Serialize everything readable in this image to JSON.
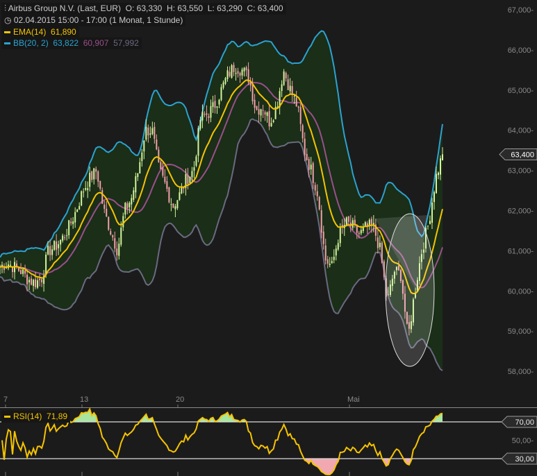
{
  "header": {
    "title": "Airbus Group N.V. (Last, EUR)",
    "open": "O: 63,330",
    "high": "H: 63,550",
    "low": "L: 63,290",
    "close": "C: 63,400",
    "period": "02.04.2015 15:00 - 17:00 (1 Monat, 1 Stunde)",
    "ema_label": "EMA(14)",
    "ema_value": "61,890",
    "bb_label": "BB(20, 2)",
    "bb_upper": "63,822",
    "bb_mid": "60,907",
    "bb_lower": "57,992",
    "rsi_label": "RSI(14)",
    "rsi_value": "71,89"
  },
  "colors": {
    "background": "#1c1b1b",
    "ema": "#f5c400",
    "bb_upper": "#2aa3d0",
    "bb_mid": "#9a4f8a",
    "bb_lower": "#6a6a80",
    "band_fill": "#1a2e18",
    "up": "#d4f59a",
    "down": "#f2a0a8",
    "rsi": "#f5c400",
    "rsi_over": "#a8e6a0",
    "rsi_under": "#f2a8b0"
  },
  "chart_data": [
    {
      "type": "candlestick",
      "x_tick_labels": [
        "7",
        "13",
        "20",
        "Mai"
      ],
      "y_tick_labels": [
        "67,000",
        "66,000",
        "65,000",
        "64,000",
        "63,000",
        "62,000",
        "61,000",
        "60,000",
        "59,000",
        "58,000"
      ],
      "ylim": [
        58,
        67
      ],
      "last_price_label": "63,400",
      "close_sampled": [
        60.6,
        60.7,
        60.6,
        60.5,
        60.3,
        60.2,
        60.3,
        61.0,
        61.1,
        61.3,
        61.6,
        62.0,
        62.5,
        62.8,
        63.0,
        62.0,
        61.5,
        61.0,
        62.0,
        62.3,
        63.0,
        64.0,
        64.0,
        63.0,
        62.6,
        62.1,
        62.4,
        62.8,
        63.0,
        64.3,
        64.4,
        64.6,
        65.0,
        65.4,
        65.6,
        65.5,
        65.3,
        64.5,
        64.6,
        64.2,
        64.6,
        65.5,
        65.0,
        64.6,
        63.5,
        63.0,
        62.4,
        60.8,
        60.6,
        61.4,
        61.7,
        61.6,
        61.4,
        61.6,
        61.6,
        61.0,
        59.7,
        60.5,
        60.4,
        58.8,
        60.0,
        61.0,
        61.7,
        62.8,
        63.4
      ],
      "indicators": [
        "EMA(14)",
        "BB(20, 2)"
      ]
    },
    {
      "type": "line",
      "series": [
        {
          "name": "RSI(14)"
        }
      ],
      "ylim": [
        0,
        100
      ],
      "levels": [
        70,
        30
      ],
      "level_labels": [
        "70,00",
        "30,00"
      ],
      "y_tick_labels": [
        "50,00"
      ]
    }
  ]
}
